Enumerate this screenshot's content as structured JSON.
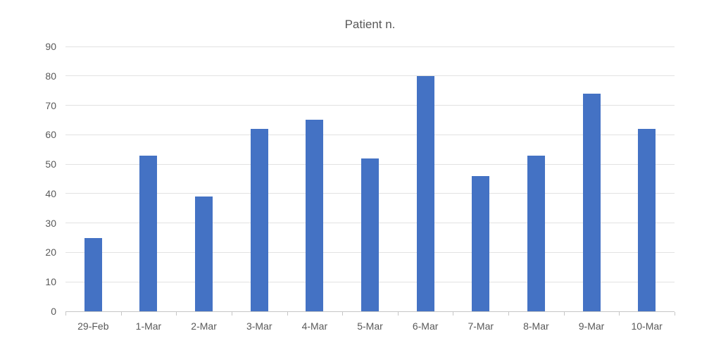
{
  "chart_data": {
    "type": "bar",
    "title": "Patient n.",
    "categories": [
      "29-Feb",
      "1-Mar",
      "2-Mar",
      "3-Mar",
      "4-Mar",
      "5-Mar",
      "6-Mar",
      "7-Mar",
      "8-Mar",
      "9-Mar",
      "10-Mar"
    ],
    "values": [
      25,
      53,
      39,
      62,
      65,
      52,
      80,
      46,
      53,
      74,
      62
    ],
    "xlabel": "",
    "ylabel": "",
    "ylim": [
      0,
      90
    ],
    "ytick_step": 10,
    "ytick_labels": [
      "0",
      "10",
      "20",
      "30",
      "40",
      "50",
      "60",
      "70",
      "80",
      "90"
    ],
    "grid": "horizontal",
    "legend": "none",
    "colors": {
      "bar": "#4472C4",
      "title_text": "#595959",
      "tick_text": "#595959",
      "gridline": "#e2e2e2",
      "axis_line": "#c6c6c6",
      "background": "#ffffff"
    }
  }
}
